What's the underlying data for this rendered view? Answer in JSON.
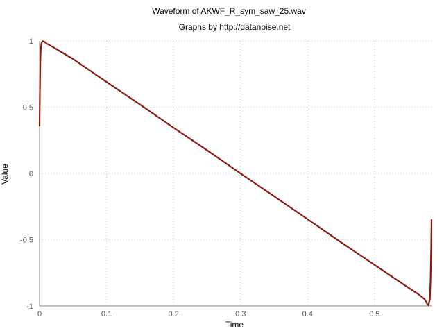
{
  "chart_data": {
    "type": "line",
    "title": "Waveform of AKWF_R_sym_saw_25.wav",
    "subtitle": "Graphs by http://datanoise.net",
    "xlabel": "Time",
    "ylabel": "Value",
    "xlim": [
      0,
      0.585
    ],
    "ylim": [
      -1,
      1
    ],
    "grid": true,
    "x_ticks": [
      0,
      0.1,
      0.2,
      0.3,
      0.4,
      0.5
    ],
    "x_tick_labels": [
      "0",
      "0.1",
      "0.2",
      "0.3",
      "0.4",
      "0.5"
    ],
    "y_ticks": [
      1,
      0.5,
      0,
      -0.5,
      -1
    ],
    "y_tick_labels": [
      "1",
      "0.5",
      "0",
      "-0.5",
      "-1"
    ],
    "line_color": "#8b1a10",
    "series": [
      {
        "x": [
          0,
          0.0005,
          0.0012,
          0.002,
          0.003,
          0.0045,
          0.006,
          0.0075,
          0.01,
          0.02,
          0.05,
          0.1,
          0.15,
          0.2,
          0.25,
          0.3,
          0.35,
          0.4,
          0.45,
          0.5,
          0.55,
          0.565,
          0.575,
          0.578,
          0.5805,
          0.5825,
          0.5835,
          0.5845,
          0.585
        ],
        "y": [
          0.36,
          0.62,
          0.85,
          0.95,
          0.985,
          0.998,
          0.997,
          0.993,
          0.982,
          0.954,
          0.864,
          0.69,
          0.52,
          0.345,
          0.175,
          0.0,
          -0.172,
          -0.345,
          -0.52,
          -0.69,
          -0.86,
          -0.91,
          -0.95,
          -0.98,
          -0.995,
          -0.95,
          -0.8,
          -0.55,
          -0.35
        ]
      }
    ]
  }
}
